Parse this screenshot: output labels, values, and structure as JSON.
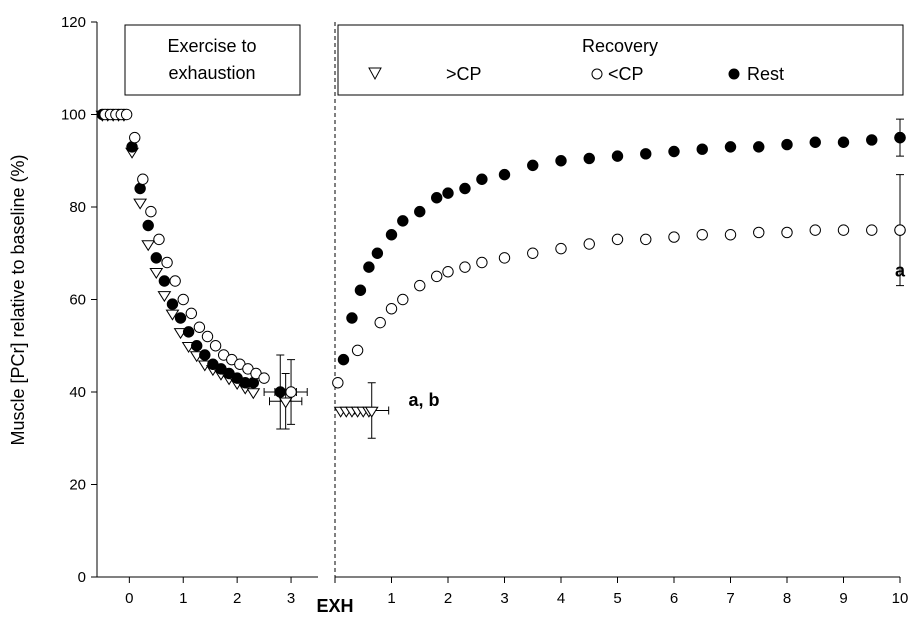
{
  "chart_data": {
    "type": "scatter",
    "ylabel": "Muscle [PCr] relative to baseline (%)",
    "ylim": [
      0,
      120
    ],
    "y_ticks": [
      "0",
      "20",
      "40",
      "60",
      "80",
      "100",
      "120"
    ],
    "panels": [
      {
        "box_label": [
          "Exercise to",
          "exhaustion"
        ],
        "xlim": [
          -0.6,
          3.5
        ],
        "x_ticks": [
          "0",
          "1",
          "2",
          "3"
        ],
        "series": [
          {
            "name": ">CP",
            "marker": "triangle-open",
            "x": [
              -0.5,
              -0.4,
              -0.3,
              -0.2,
              -0.1,
              0.05,
              0.2,
              0.35,
              0.5,
              0.65,
              0.8,
              0.95,
              1.1,
              1.25,
              1.4,
              1.55,
              1.7,
              1.85,
              2.0,
              2.15,
              2.3
            ],
            "y": [
              100,
              100,
              100,
              100,
              100,
              92,
              81,
              72,
              66,
              61,
              57,
              53,
              50,
              48,
              46,
              45,
              44,
              43,
              42,
              41,
              40
            ],
            "final": {
              "x": 2.9,
              "y": 38,
              "xerr": 0.3,
              "yerr": 6
            }
          },
          {
            "name": "Rest",
            "marker": "circle-filled",
            "x": [
              -0.5,
              -0.4,
              -0.3,
              -0.2,
              -0.1,
              0.05,
              0.2,
              0.35,
              0.5,
              0.65,
              0.8,
              0.95,
              1.1,
              1.25,
              1.4,
              1.55,
              1.7,
              1.85,
              2.0,
              2.15,
              2.3
            ],
            "y": [
              100,
              100,
              100,
              100,
              100,
              93,
              84,
              76,
              69,
              64,
              59,
              56,
              53,
              50,
              48,
              46,
              45,
              44,
              43,
              42,
              42
            ],
            "final": {
              "x": 2.8,
              "y": 40,
              "xerr": 0.3,
              "yerr": 8
            }
          },
          {
            "name": "<CP",
            "marker": "circle-open",
            "x": [
              -0.45,
              -0.35,
              -0.25,
              -0.15,
              -0.05,
              0.1,
              0.25,
              0.4,
              0.55,
              0.7,
              0.85,
              1.0,
              1.15,
              1.3,
              1.45,
              1.6,
              1.75,
              1.9,
              2.05,
              2.2,
              2.35,
              2.5
            ],
            "y": [
              100,
              100,
              100,
              100,
              100,
              95,
              86,
              79,
              73,
              68,
              64,
              60,
              57,
              54,
              52,
              50,
              48,
              47,
              46,
              45,
              44,
              43
            ],
            "final": {
              "x": 3.0,
              "y": 40,
              "xerr": 0.3,
              "yerr": 7
            }
          }
        ]
      },
      {
        "box_title": "Recovery",
        "legend": [
          ">CP",
          "<CP",
          "Rest"
        ],
        "xlim": [
          0,
          10
        ],
        "x_ticks": [
          "EXH",
          "1",
          "2",
          "3",
          "4",
          "5",
          "6",
          "7",
          "8",
          "9",
          "10"
        ],
        "series": [
          {
            "name": ">CP",
            "marker": "triangle-open",
            "x": [
              0.1,
              0.2,
              0.3,
              0.4,
              0.5,
              0.6
            ],
            "y": [
              36,
              36,
              36,
              36,
              36,
              36
            ],
            "final": {
              "x": 0.65,
              "y": 36,
              "xerr": 0.3,
              "yerr": 6
            }
          },
          {
            "name": "<CP",
            "marker": "circle-open",
            "x": [
              0.05,
              0.4,
              0.8,
              1,
              1.2,
              1.5,
              1.8,
              2,
              2.3,
              2.6,
              3,
              3.5,
              4,
              4.5,
              5,
              5.5,
              6,
              6.5,
              7,
              7.5,
              8,
              8.5,
              9,
              9.5,
              10
            ],
            "y": [
              42,
              49,
              55,
              58,
              60,
              63,
              65,
              66,
              67,
              68,
              69,
              70,
              71,
              72,
              73,
              73,
              73.5,
              74,
              74,
              74.5,
              74.5,
              75,
              75,
              75,
              75
            ],
            "final": {
              "x": 10,
              "y": 75,
              "xerr": 0,
              "yerr": 12
            }
          },
          {
            "name": "Rest",
            "marker": "circle-filled",
            "x": [
              0.15,
              0.3,
              0.45,
              0.6,
              0.75,
              1,
              1.2,
              1.5,
              1.8,
              2,
              2.3,
              2.6,
              3,
              3.5,
              4,
              4.5,
              5,
              5.5,
              6,
              6.5,
              7,
              7.5,
              8,
              8.5,
              9,
              9.5,
              10
            ],
            "y": [
              47,
              56,
              62,
              67,
              70,
              74,
              77,
              79,
              82,
              83,
              84,
              86,
              87,
              89,
              90,
              90.5,
              91,
              91.5,
              92,
              92.5,
              93,
              93,
              93.5,
              94,
              94,
              94.5,
              95
            ],
            "final": {
              "x": 10,
              "y": 95,
              "xerr": 0,
              "yerr": 4
            }
          }
        ]
      }
    ],
    "annotations": [
      {
        "text": "a, b",
        "x": 1.3,
        "y": 37,
        "panel": 1
      },
      {
        "text": "a",
        "x": 10,
        "y": 65,
        "panel": 1
      }
    ]
  }
}
